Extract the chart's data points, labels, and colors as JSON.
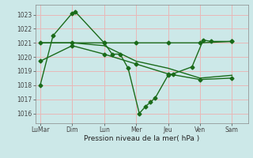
{
  "background_color": "#cce8e8",
  "grid_color": "#e8b8b8",
  "line_color": "#1a6b1a",
  "xlabel_text": "Pression niveau de la mer( hPa )",
  "xtick_labels": [
    "LuMar",
    "Dim",
    "Lun",
    "Mer",
    "Jeu",
    "Ven",
    "Sam"
  ],
  "xtick_positions": [
    0,
    2,
    4,
    6,
    8,
    10,
    12
  ],
  "ylim": [
    1015.3,
    1023.7
  ],
  "xlim": [
    -0.3,
    13.0
  ],
  "yticks": [
    1016,
    1017,
    1018,
    1019,
    1020,
    1021,
    1022,
    1023
  ],
  "series": [
    {
      "x": [
        0.0,
        0.8,
        2.0,
        2.2,
        4.0,
        4.5,
        5.0,
        5.5,
        6.2,
        6.6,
        6.9,
        7.2,
        8.0,
        8.3,
        9.5,
        10.2,
        10.7,
        12.0
      ],
      "y": [
        1018.0,
        1021.5,
        1023.1,
        1023.2,
        1021.0,
        1020.2,
        1020.2,
        1019.2,
        1016.0,
        1016.5,
        1016.8,
        1017.1,
        1018.7,
        1018.8,
        1019.3,
        1021.2,
        1021.1,
        1021.1
      ],
      "marker": "D",
      "markersize": 2.5,
      "linewidth": 1.0
    },
    {
      "x": [
        0.0,
        2.0,
        4.0,
        6.0,
        8.0,
        10.0,
        12.0
      ],
      "y": [
        1021.0,
        1021.0,
        1021.0,
        1021.0,
        1021.0,
        1021.0,
        1021.1
      ],
      "marker": "D",
      "markersize": 2.5,
      "linewidth": 1.0
    },
    {
      "comment": "gradual decline: LuMar~1019.7, Dim~1020.8, Lun~1020.2, Mer~1019.5, Jeu~1018.8, Ven~1018.4, Sam~1018.5",
      "x": [
        0.0,
        2.0,
        4.0,
        6.0,
        8.0,
        10.0,
        12.0
      ],
      "y": [
        1019.7,
        1020.8,
        1020.2,
        1019.5,
        1018.8,
        1018.4,
        1018.5
      ],
      "marker": "D",
      "markersize": 2.5,
      "linewidth": 1.0
    },
    {
      "x": [
        0.0,
        2.0,
        4.0,
        6.0,
        8.0,
        10.0,
        12.0
      ],
      "y": [
        1021.0,
        1021.0,
        1020.8,
        1019.7,
        1019.2,
        1018.5,
        1018.7
      ],
      "marker": null,
      "markersize": 0,
      "linewidth": 1.0
    }
  ]
}
